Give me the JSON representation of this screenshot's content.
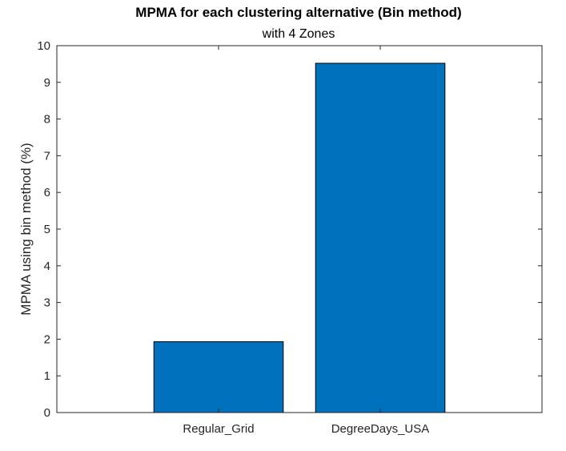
{
  "chart_data": {
    "type": "bar",
    "title": "MPMA for each clustering alternative (Bin method)",
    "subtitle": "with 4 Zones",
    "xlabel": "",
    "ylabel": "MPMA using bin method (%)",
    "categories": [
      "Regular_Grid",
      "DegreeDays_USA"
    ],
    "values": [
      1.93,
      9.52
    ],
    "ylim": [
      0,
      10
    ],
    "yticks": [
      0,
      1,
      2,
      3,
      4,
      5,
      6,
      7,
      8,
      9,
      10
    ],
    "xlim": [
      0,
      3
    ],
    "grid": false,
    "legend": "none",
    "colors": {
      "bar": "#0072BD",
      "bar_edge": "#000000",
      "axis": "#262626",
      "background": "#ffffff"
    }
  }
}
